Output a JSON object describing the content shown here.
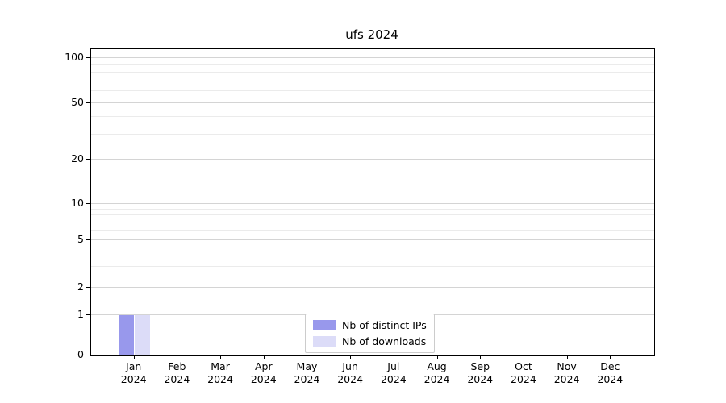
{
  "title": "ufs 2024",
  "chart_data": {
    "type": "bar",
    "title": "ufs 2024",
    "categories": [
      "Jan 2024",
      "Feb 2024",
      "Mar 2024",
      "Apr 2024",
      "May 2024",
      "Jun 2024",
      "Jul 2024",
      "Aug 2024",
      "Sep 2024",
      "Oct 2024",
      "Nov 2024",
      "Dec 2024"
    ],
    "x_tick_month": [
      "Jan",
      "Feb",
      "Mar",
      "Apr",
      "May",
      "Jun",
      "Jul",
      "Aug",
      "Sep",
      "Oct",
      "Nov",
      "Dec"
    ],
    "x_tick_year": "2024",
    "series": [
      {
        "name": "Nb of distinct IPs",
        "color": "#9898ec",
        "values": [
          1,
          0,
          0,
          0,
          0,
          0,
          0,
          0,
          0,
          0,
          0,
          0
        ]
      },
      {
        "name": "Nb of downloads",
        "color": "#dcdcf8",
        "values": [
          1,
          0,
          0,
          0,
          0,
          0,
          0,
          0,
          0,
          0,
          0,
          0
        ]
      }
    ],
    "y_ticks": [
      0,
      1,
      2,
      5,
      10,
      20,
      50,
      100
    ],
    "ylim": [
      0,
      110
    ],
    "y_axis_scale": "log above 1, linear 0-1",
    "grid": "horizontal minor log gridlines",
    "legend_position": "lower center",
    "xlabel": "",
    "ylabel": ""
  }
}
